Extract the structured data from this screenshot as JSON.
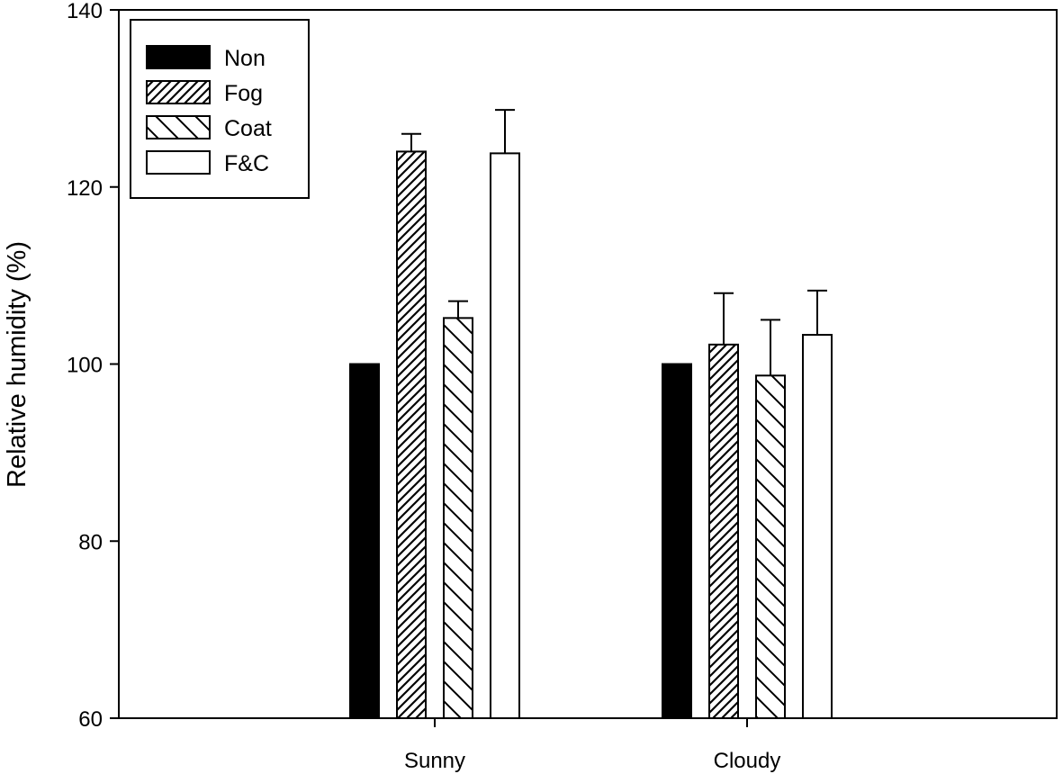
{
  "chart_data": {
    "type": "bar",
    "title": "",
    "xlabel": "",
    "ylabel": "Relative humidity (%)",
    "ylim": [
      60,
      140
    ],
    "yticks": [
      60,
      80,
      100,
      120,
      140
    ],
    "grid": false,
    "legend_position": "top-left",
    "categories": [
      "Sunny",
      "Cloudy"
    ],
    "series": [
      {
        "name": "Non",
        "pattern": "solid",
        "values": [
          100,
          100
        ],
        "errors": [
          0,
          0
        ]
      },
      {
        "name": "Fog",
        "pattern": "hatch-up",
        "values": [
          124,
          102.2
        ],
        "errors": [
          2.0,
          5.8
        ]
      },
      {
        "name": "Coat",
        "pattern": "hatch-down",
        "values": [
          105.2,
          98.7
        ],
        "errors": [
          1.9,
          6.3
        ]
      },
      {
        "name": "F&C",
        "pattern": "open",
        "values": [
          123.8,
          103.3
        ],
        "errors": [
          4.9,
          5.0
        ]
      }
    ],
    "colors": {
      "bar_fill": "#000000",
      "bar_stroke": "#000000",
      "background": "#ffffff"
    }
  }
}
